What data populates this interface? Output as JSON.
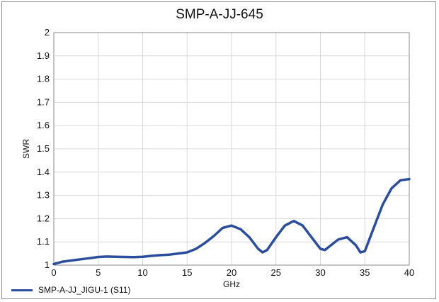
{
  "chart_data": {
    "type": "line",
    "title": "SMP-A-JJ-645",
    "xlabel": "GHz",
    "ylabel": "SWR",
    "xlim": [
      0,
      40
    ],
    "ylim": [
      1,
      2
    ],
    "xticks": [
      "0",
      "5",
      "10",
      "15",
      "20",
      "25",
      "30",
      "35",
      "40"
    ],
    "yticks": [
      "1",
      "1.1",
      "1.2",
      "1.3",
      "1.4",
      "1.5",
      "1.6",
      "1.7",
      "1.8",
      "1.9",
      "2"
    ],
    "grid": true,
    "legend_position": "bottom-left",
    "color": "#2a4d9c",
    "series": [
      {
        "name": "SMP-A-JJ_JIGU-1 (S11)",
        "x": [
          0,
          1,
          2,
          3,
          4,
          5,
          6,
          7,
          8,
          9,
          10,
          11,
          12,
          13,
          14,
          15,
          16,
          17,
          18,
          19,
          20,
          21,
          22,
          23,
          23.5,
          24,
          25,
          26,
          27,
          28,
          29,
          30,
          30.5,
          31,
          32,
          33,
          34,
          34.5,
          35,
          36,
          37,
          38,
          39,
          40
        ],
        "y": [
          1.005,
          1.015,
          1.02,
          1.025,
          1.03,
          1.035,
          1.037,
          1.036,
          1.035,
          1.034,
          1.036,
          1.04,
          1.043,
          1.045,
          1.05,
          1.055,
          1.07,
          1.095,
          1.125,
          1.16,
          1.17,
          1.155,
          1.12,
          1.07,
          1.055,
          1.065,
          1.12,
          1.17,
          1.19,
          1.17,
          1.12,
          1.07,
          1.065,
          1.08,
          1.11,
          1.12,
          1.085,
          1.055,
          1.06,
          1.16,
          1.26,
          1.33,
          1.365,
          1.37
        ]
      }
    ]
  }
}
